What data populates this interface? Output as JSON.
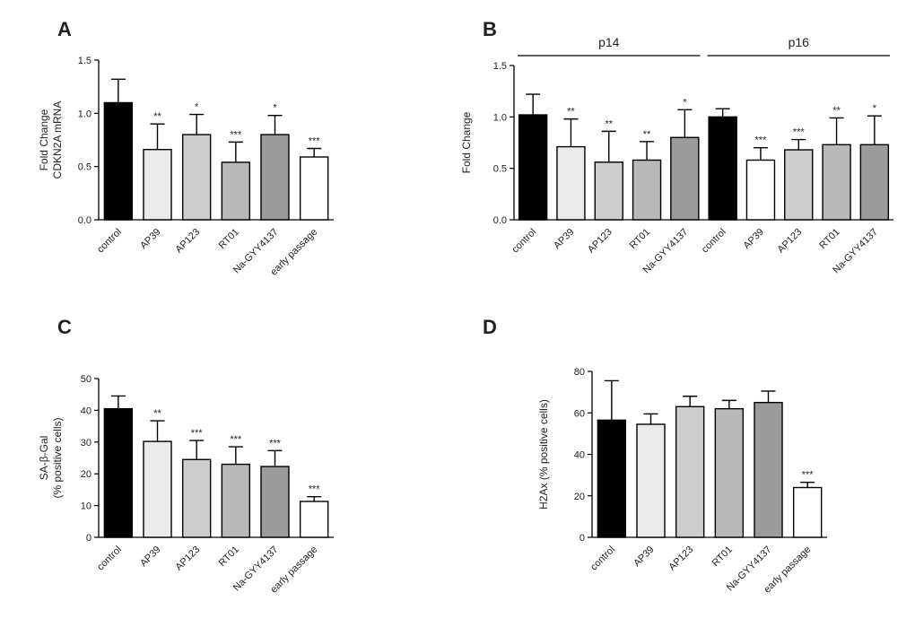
{
  "chart_data": [
    {
      "panel": "A",
      "type": "bar",
      "ylabel_lines": [
        "Fold Change",
        "CDKN2A mRNA"
      ],
      "ylim": [
        0,
        1.5
      ],
      "yticks": [
        "0.0",
        "0.5",
        "1.0",
        "1.5"
      ],
      "categories": [
        "control",
        "AP39",
        "AP123",
        "RT01",
        "Na-GYY4137",
        "early passage"
      ],
      "values": [
        1.1,
        0.66,
        0.8,
        0.54,
        0.8,
        0.59
      ],
      "errors": [
        0.22,
        0.24,
        0.19,
        0.19,
        0.18,
        0.08
      ],
      "significance": [
        "",
        "**",
        "*",
        "***",
        "*",
        "***"
      ],
      "colors": [
        "#000000",
        "#eaeaea",
        "#cdcdcd",
        "#b8b8b8",
        "#9b9b9b",
        "#ffffff"
      ]
    },
    {
      "panel": "B",
      "type": "bar",
      "ylabel_lines": [
        "Fold Change"
      ],
      "ylim": [
        0,
        1.5
      ],
      "yticks": [
        "0.0",
        "0.5",
        "1.0",
        "1.5"
      ],
      "groups": [
        {
          "label": "p14",
          "start": 0,
          "end": 4
        },
        {
          "label": "p16",
          "start": 5,
          "end": 9
        }
      ],
      "categories": [
        "control",
        "AP39",
        "AP123",
        "RT01",
        "Na-GYY4137",
        "control",
        "AP39",
        "AP123",
        "RT01",
        "Na-GYY4137"
      ],
      "values": [
        1.02,
        0.71,
        0.56,
        0.58,
        0.8,
        1.0,
        0.58,
        0.68,
        0.73,
        0.73
      ],
      "errors": [
        0.2,
        0.27,
        0.3,
        0.18,
        0.27,
        0.08,
        0.12,
        0.1,
        0.26,
        0.28
      ],
      "significance": [
        "",
        "**",
        "**",
        "**",
        "*",
        "",
        "***",
        "***",
        "**",
        "*"
      ],
      "colors": [
        "#000000",
        "#eaeaea",
        "#cdcdcd",
        "#b8b8b8",
        "#9b9b9b",
        "#000000",
        "#ffffff",
        "#cdcdcd",
        "#b8b8b8",
        "#9b9b9b"
      ]
    },
    {
      "panel": "C",
      "type": "bar",
      "ylabel_lines": [
        "SA-β-Gal",
        "(% positive cells)"
      ],
      "ylim": [
        0,
        50
      ],
      "yticks": [
        "0",
        "10",
        "20",
        "30",
        "40",
        "50"
      ],
      "categories": [
        "control",
        "AP39",
        "AP123",
        "RT01",
        "Na-GYY4137",
        "early passage"
      ],
      "values": [
        40.5,
        30.2,
        24.5,
        23.0,
        22.3,
        11.3
      ],
      "errors": [
        4.0,
        6.5,
        6.0,
        5.5,
        5.0,
        1.5
      ],
      "significance": [
        "",
        "**",
        "***",
        "***",
        "***",
        "***"
      ],
      "colors": [
        "#000000",
        "#eaeaea",
        "#cdcdcd",
        "#b8b8b8",
        "#9b9b9b",
        "#ffffff"
      ]
    },
    {
      "panel": "D",
      "type": "bar",
      "ylabel_lines": [
        "H2Ax (% positive cells)"
      ],
      "ylim": [
        0,
        80
      ],
      "yticks": [
        "0",
        "20",
        "40",
        "60",
        "80"
      ],
      "categories": [
        "control",
        "AP39",
        "AP123",
        "RT01",
        "Na-GYY4137",
        "early passage"
      ],
      "values": [
        56.5,
        54.5,
        63.0,
        62.0,
        65.0,
        24.0
      ],
      "errors": [
        19.0,
        5.0,
        5.0,
        4.0,
        5.5,
        2.5
      ],
      "significance": [
        "",
        "",
        "",
        "",
        "",
        "***"
      ],
      "colors": [
        "#000000",
        "#eaeaea",
        "#cdcdcd",
        "#b8b8b8",
        "#9b9b9b",
        "#ffffff"
      ]
    }
  ]
}
